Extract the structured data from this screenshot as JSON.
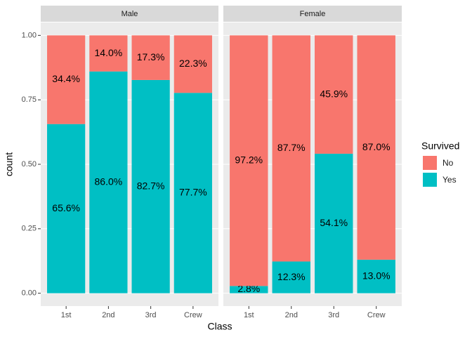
{
  "chart_data": {
    "type": "bar",
    "stacked": true,
    "x_label": "Class",
    "y_label": "count",
    "legend_title": "Survived",
    "ylim": [
      -0.05,
      1.05
    ],
    "yticks": [
      {
        "value": 0,
        "label": "0.00"
      },
      {
        "value": 0.25,
        "label": "0.25"
      },
      {
        "value": 0.5,
        "label": "0.50"
      },
      {
        "value": 0.75,
        "label": "0.75"
      },
      {
        "value": 1,
        "label": "1.00"
      }
    ],
    "grid": true,
    "series": [
      {
        "name": "No",
        "color": "#F8766D"
      },
      {
        "name": "Yes",
        "color": "#00BFC4"
      }
    ],
    "facets": [
      {
        "title": "Male",
        "categories": [
          "1st",
          "2nd",
          "3rd",
          "Crew"
        ],
        "series": [
          {
            "values": [
              0.344,
              0.14,
              0.173,
              0.223
            ],
            "value_labels": [
              "34.4%",
              "14.0%",
              "17.3%",
              "22.3%"
            ]
          },
          {
            "values": [
              0.656,
              0.86,
              0.827,
              0.777
            ],
            "value_labels": [
              "65.6%",
              "86.0%",
              "82.7%",
              "77.7%"
            ]
          }
        ]
      },
      {
        "title": "Female",
        "categories": [
          "1st",
          "2nd",
          "3rd",
          "Crew"
        ],
        "series": [
          {
            "values": [
              0.972,
              0.877,
              0.459,
              0.87
            ],
            "value_labels": [
              "97.2%",
              "87.7%",
              "45.9%",
              "87.0%"
            ]
          },
          {
            "values": [
              0.028,
              0.123,
              0.541,
              0.13
            ],
            "value_labels": [
              "2.8%",
              "12.3%",
              "54.1%",
              "13.0%"
            ]
          }
        ]
      }
    ]
  }
}
